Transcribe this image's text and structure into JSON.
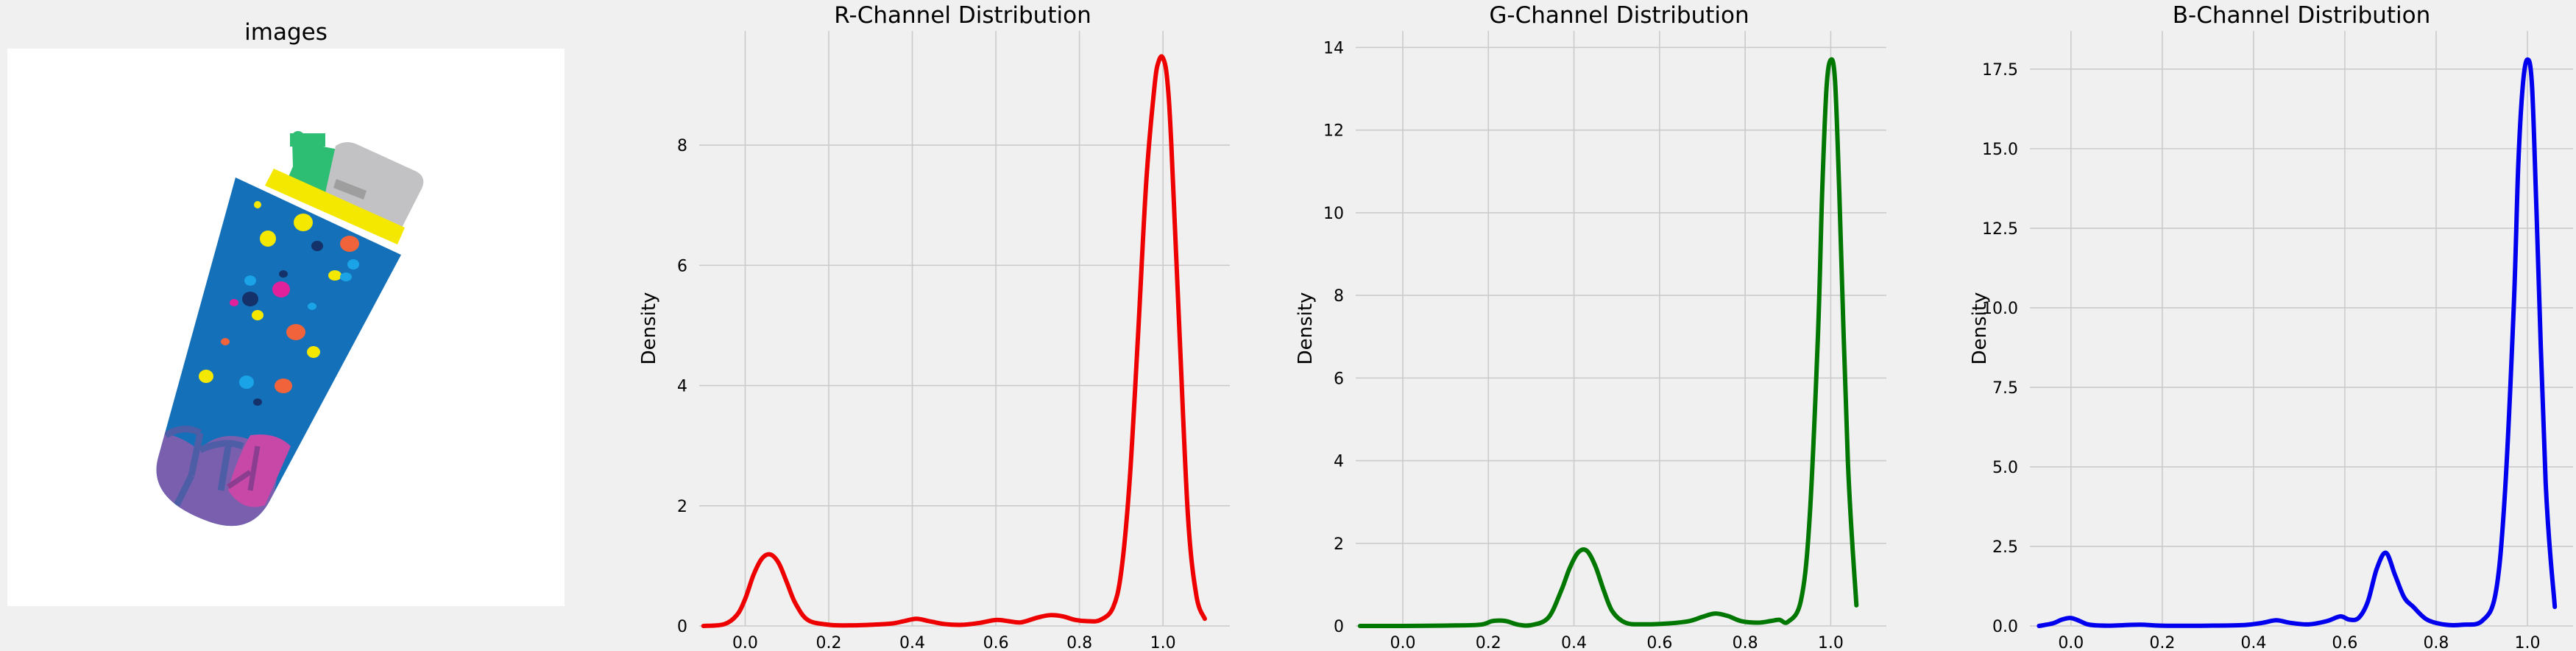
{
  "figure": {
    "background": "#f0f0f0",
    "image_panel_title": "images"
  },
  "chart_data": [
    {
      "type": "line",
      "title": "R-Channel Distribution",
      "xlabel": "",
      "ylabel": "Density",
      "color": "#ee0000",
      "xlim": [
        -0.11,
        1.16
      ],
      "ylim": [
        0,
        9.9
      ],
      "xticks": [
        0.0,
        0.2,
        0.4,
        0.6,
        0.8,
        1.0
      ],
      "xtick_labels": [
        "0.0",
        "0.2",
        "0.4",
        "0.6",
        "0.8",
        "1.0"
      ],
      "yticks": [
        0,
        2,
        4,
        6,
        8
      ],
      "ytick_labels": [
        "0",
        "2",
        "4",
        "6",
        "8"
      ],
      "grid": true,
      "x": [
        -0.1,
        -0.05,
        -0.02,
        0.0,
        0.02,
        0.04,
        0.06,
        0.08,
        0.1,
        0.12,
        0.15,
        0.2,
        0.25,
        0.3,
        0.35,
        0.38,
        0.41,
        0.44,
        0.48,
        0.52,
        0.56,
        0.6,
        0.63,
        0.66,
        0.7,
        0.73,
        0.76,
        0.79,
        0.82,
        0.85,
        0.88,
        0.9,
        0.92,
        0.94,
        0.96,
        0.98,
        0.99,
        1.0,
        1.01,
        1.02,
        1.04,
        1.06,
        1.08,
        1.1
      ],
      "y": [
        0.0,
        0.03,
        0.18,
        0.45,
        0.85,
        1.12,
        1.19,
        1.05,
        0.72,
        0.38,
        0.1,
        0.02,
        0.01,
        0.02,
        0.04,
        0.08,
        0.12,
        0.08,
        0.03,
        0.02,
        0.05,
        0.1,
        0.08,
        0.06,
        0.14,
        0.18,
        0.16,
        0.1,
        0.08,
        0.1,
        0.3,
        0.9,
        2.4,
        4.8,
        7.4,
        9.0,
        9.4,
        9.45,
        9.1,
        8.0,
        4.8,
        1.8,
        0.5,
        0.12
      ]
    },
    {
      "type": "line",
      "title": "G-Channel Distribution",
      "xlabel": "",
      "ylabel": "Density",
      "color": "#007700",
      "xlim": [
        -0.11,
        1.13
      ],
      "ylim": [
        0,
        14.4
      ],
      "xticks": [
        0.0,
        0.2,
        0.4,
        0.6,
        0.8,
        1.0
      ],
      "xtick_labels": [
        "0.0",
        "0.2",
        "0.4",
        "0.6",
        "0.8",
        "1.0"
      ],
      "yticks": [
        0,
        2,
        4,
        6,
        8,
        10,
        12,
        14
      ],
      "ytick_labels": [
        "0",
        "2",
        "4",
        "6",
        "8",
        "10",
        "12",
        "14"
      ],
      "grid": true,
      "x": [
        -0.1,
        -0.05,
        0.0,
        0.1,
        0.18,
        0.21,
        0.24,
        0.27,
        0.3,
        0.34,
        0.37,
        0.39,
        0.41,
        0.43,
        0.45,
        0.47,
        0.49,
        0.52,
        0.56,
        0.62,
        0.67,
        0.7,
        0.73,
        0.76,
        0.79,
        0.83,
        0.86,
        0.88,
        0.9,
        0.93,
        0.95,
        0.97,
        0.98,
        0.99,
        1.0,
        1.01,
        1.02,
        1.04,
        1.06
      ],
      "y": [
        0.0,
        0.0,
        0.0,
        0.01,
        0.03,
        0.12,
        0.12,
        0.03,
        0.02,
        0.2,
        0.85,
        1.4,
        1.78,
        1.82,
        1.45,
        0.85,
        0.35,
        0.08,
        0.04,
        0.06,
        0.12,
        0.22,
        0.3,
        0.24,
        0.12,
        0.08,
        0.12,
        0.15,
        0.1,
        0.6,
        2.5,
        7.0,
        10.5,
        13.0,
        13.7,
        13.2,
        10.5,
        4.0,
        0.5
      ]
    },
    {
      "type": "line",
      "title": "B-Channel Distribution",
      "xlabel": "",
      "ylabel": "Density",
      "color": "#0000ee",
      "xlim": [
        -0.09,
        1.1
      ],
      "ylim": [
        0,
        18.7
      ],
      "xticks": [
        0.0,
        0.2,
        0.4,
        0.6,
        0.8,
        1.0
      ],
      "xtick_labels": [
        "0.0",
        "0.2",
        "0.4",
        "0.6",
        "0.8",
        "1.0"
      ],
      "yticks": [
        0,
        2.5,
        5,
        7.5,
        10,
        12.5,
        15,
        17.5
      ],
      "ytick_labels": [
        "0.0",
        "2.5",
        "5.0",
        "7.5",
        "10.0",
        "12.5",
        "15.0",
        "17.5"
      ],
      "grid": true,
      "x": [
        -0.07,
        -0.04,
        -0.02,
        0.0,
        0.02,
        0.04,
        0.08,
        0.15,
        0.2,
        0.3,
        0.38,
        0.42,
        0.45,
        0.48,
        0.52,
        0.56,
        0.59,
        0.61,
        0.63,
        0.65,
        0.67,
        0.69,
        0.71,
        0.73,
        0.75,
        0.78,
        0.82,
        0.86,
        0.9,
        0.93,
        0.95,
        0.97,
        0.98,
        0.99,
        1.0,
        1.01,
        1.02,
        1.04,
        1.06
      ],
      "y": [
        0.0,
        0.08,
        0.2,
        0.25,
        0.15,
        0.04,
        0.01,
        0.04,
        0.01,
        0.01,
        0.03,
        0.1,
        0.18,
        0.1,
        0.05,
        0.15,
        0.3,
        0.2,
        0.25,
        0.75,
        1.8,
        2.3,
        1.6,
        0.9,
        0.6,
        0.2,
        0.04,
        0.04,
        0.15,
        1.0,
        4.0,
        10.0,
        14.5,
        17.0,
        17.8,
        17.0,
        13.0,
        4.5,
        0.6
      ]
    }
  ]
}
